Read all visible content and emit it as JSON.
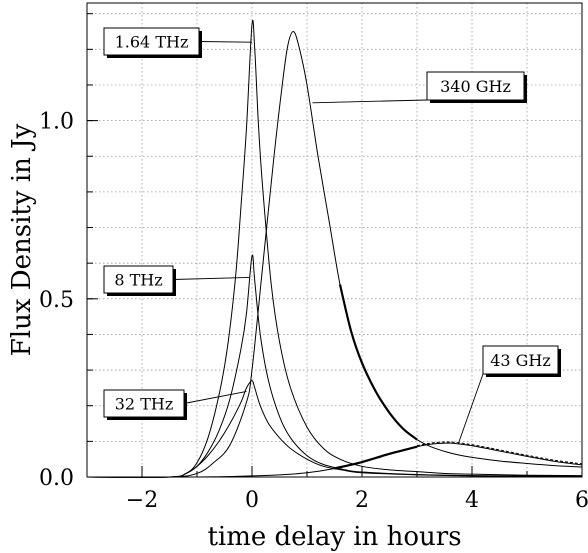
{
  "chart_data": {
    "type": "line",
    "title": "",
    "xlabel": "time delay in hours",
    "ylabel": "Flux Density in Jy",
    "xlim": [
      -3,
      6
    ],
    "ylim": [
      0,
      1.33
    ],
    "x_ticks": [
      -2,
      0,
      2,
      4,
      6
    ],
    "x_tick_labels": [
      "−2",
      "0",
      "2",
      "4",
      "6"
    ],
    "y_ticks": [
      0.0,
      0.5,
      1.0
    ],
    "y_tick_labels": [
      "0.0",
      "0.5",
      "1.0"
    ],
    "grid": true,
    "grid_style": "dotted",
    "series": [
      {
        "name": "1.64 THz",
        "x": [
          -3,
          -1.5,
          -1.2,
          -1.0,
          -0.8,
          -0.6,
          -0.45,
          -0.3,
          -0.2,
          -0.1,
          0.0,
          0.05,
          0.12,
          0.2,
          0.35,
          0.5,
          0.7,
          1.0,
          1.3,
          1.6,
          2.0,
          2.5,
          3.0,
          3.5,
          4.0,
          5.0,
          6.0
        ],
        "y": [
          0.0,
          0.0,
          0.01,
          0.04,
          0.11,
          0.23,
          0.36,
          0.56,
          0.76,
          0.98,
          1.27,
          1.2,
          0.98,
          0.8,
          0.54,
          0.38,
          0.25,
          0.14,
          0.08,
          0.05,
          0.03,
          0.02,
          0.015,
          0.01,
          0.008,
          0.005,
          0.004
        ]
      },
      {
        "name": "340 GHz",
        "x": [
          -3,
          -1.5,
          -1.0,
          -0.7,
          -0.4,
          -0.1,
          0.0,
          0.2,
          0.4,
          0.55,
          0.65,
          0.75,
          0.85,
          1.0,
          1.2,
          1.4,
          1.6,
          1.8,
          2.0,
          2.25,
          2.5,
          2.75,
          3.0,
          3.25,
          3.5,
          3.75,
          4.0,
          4.5,
          5.0,
          5.5,
          6.0
        ],
        "y": [
          0.0,
          0.0,
          0.01,
          0.04,
          0.09,
          0.21,
          0.3,
          0.6,
          0.9,
          1.1,
          1.21,
          1.25,
          1.21,
          1.1,
          0.9,
          0.72,
          0.54,
          0.41,
          0.32,
          0.24,
          0.18,
          0.135,
          0.105,
          0.085,
          0.072,
          0.062,
          0.055,
          0.045,
          0.038,
          0.032,
          0.028
        ]
      },
      {
        "name": "8 THz",
        "x": [
          -3,
          -1.5,
          -1.2,
          -1.0,
          -0.8,
          -0.6,
          -0.4,
          -0.2,
          -0.1,
          0.0,
          0.05,
          0.15,
          0.3,
          0.5,
          0.7,
          1.0,
          1.3,
          1.7,
          2.0,
          3.0,
          4.0,
          6.0
        ],
        "y": [
          0.0,
          0.0,
          0.01,
          0.03,
          0.07,
          0.13,
          0.22,
          0.36,
          0.46,
          0.62,
          0.55,
          0.4,
          0.27,
          0.17,
          0.11,
          0.06,
          0.035,
          0.02,
          0.014,
          0.007,
          0.004,
          0.002
        ]
      },
      {
        "name": "32 THz",
        "x": [
          -3,
          -1.5,
          -1.2,
          -1.0,
          -0.8,
          -0.6,
          -0.4,
          -0.2,
          -0.1,
          0.0,
          0.05,
          0.15,
          0.3,
          0.5,
          0.7,
          1.0,
          1.3,
          1.7,
          2.0,
          3.0,
          4.0,
          6.0
        ],
        "y": [
          0.0,
          0.0,
          0.01,
          0.03,
          0.06,
          0.1,
          0.15,
          0.21,
          0.25,
          0.27,
          0.25,
          0.2,
          0.15,
          0.11,
          0.08,
          0.05,
          0.03,
          0.018,
          0.012,
          0.006,
          0.003,
          0.002
        ]
      },
      {
        "name": "43 GHz",
        "x": [
          -3,
          -1,
          0,
          0.5,
          1.0,
          1.5,
          2.0,
          2.5,
          3.0,
          3.3,
          3.6,
          3.9,
          4.2,
          4.5,
          5.0,
          5.5,
          6.0
        ],
        "y": [
          0.0,
          0.0,
          0.003,
          0.006,
          0.012,
          0.024,
          0.042,
          0.065,
          0.085,
          0.093,
          0.095,
          0.09,
          0.082,
          0.073,
          0.058,
          0.044,
          0.034
        ]
      }
    ],
    "labels": [
      {
        "text": "1.64 THz",
        "series": "1.64 THz",
        "target_x": 0.0,
        "target_y": 1.22
      },
      {
        "text": "340 GHz",
        "series": "340 GHz",
        "target_x": 1.1,
        "target_y": 1.05
      },
      {
        "text": "8 THz",
        "series": "8 THz",
        "target_x": -0.05,
        "target_y": 0.56
      },
      {
        "text": "32 THz",
        "series": "32 THz",
        "target_x": -0.1,
        "target_y": 0.24
      },
      {
        "text": "43 GHz",
        "series": "43 GHz",
        "target_x": 3.75,
        "target_y": 0.093
      }
    ]
  }
}
